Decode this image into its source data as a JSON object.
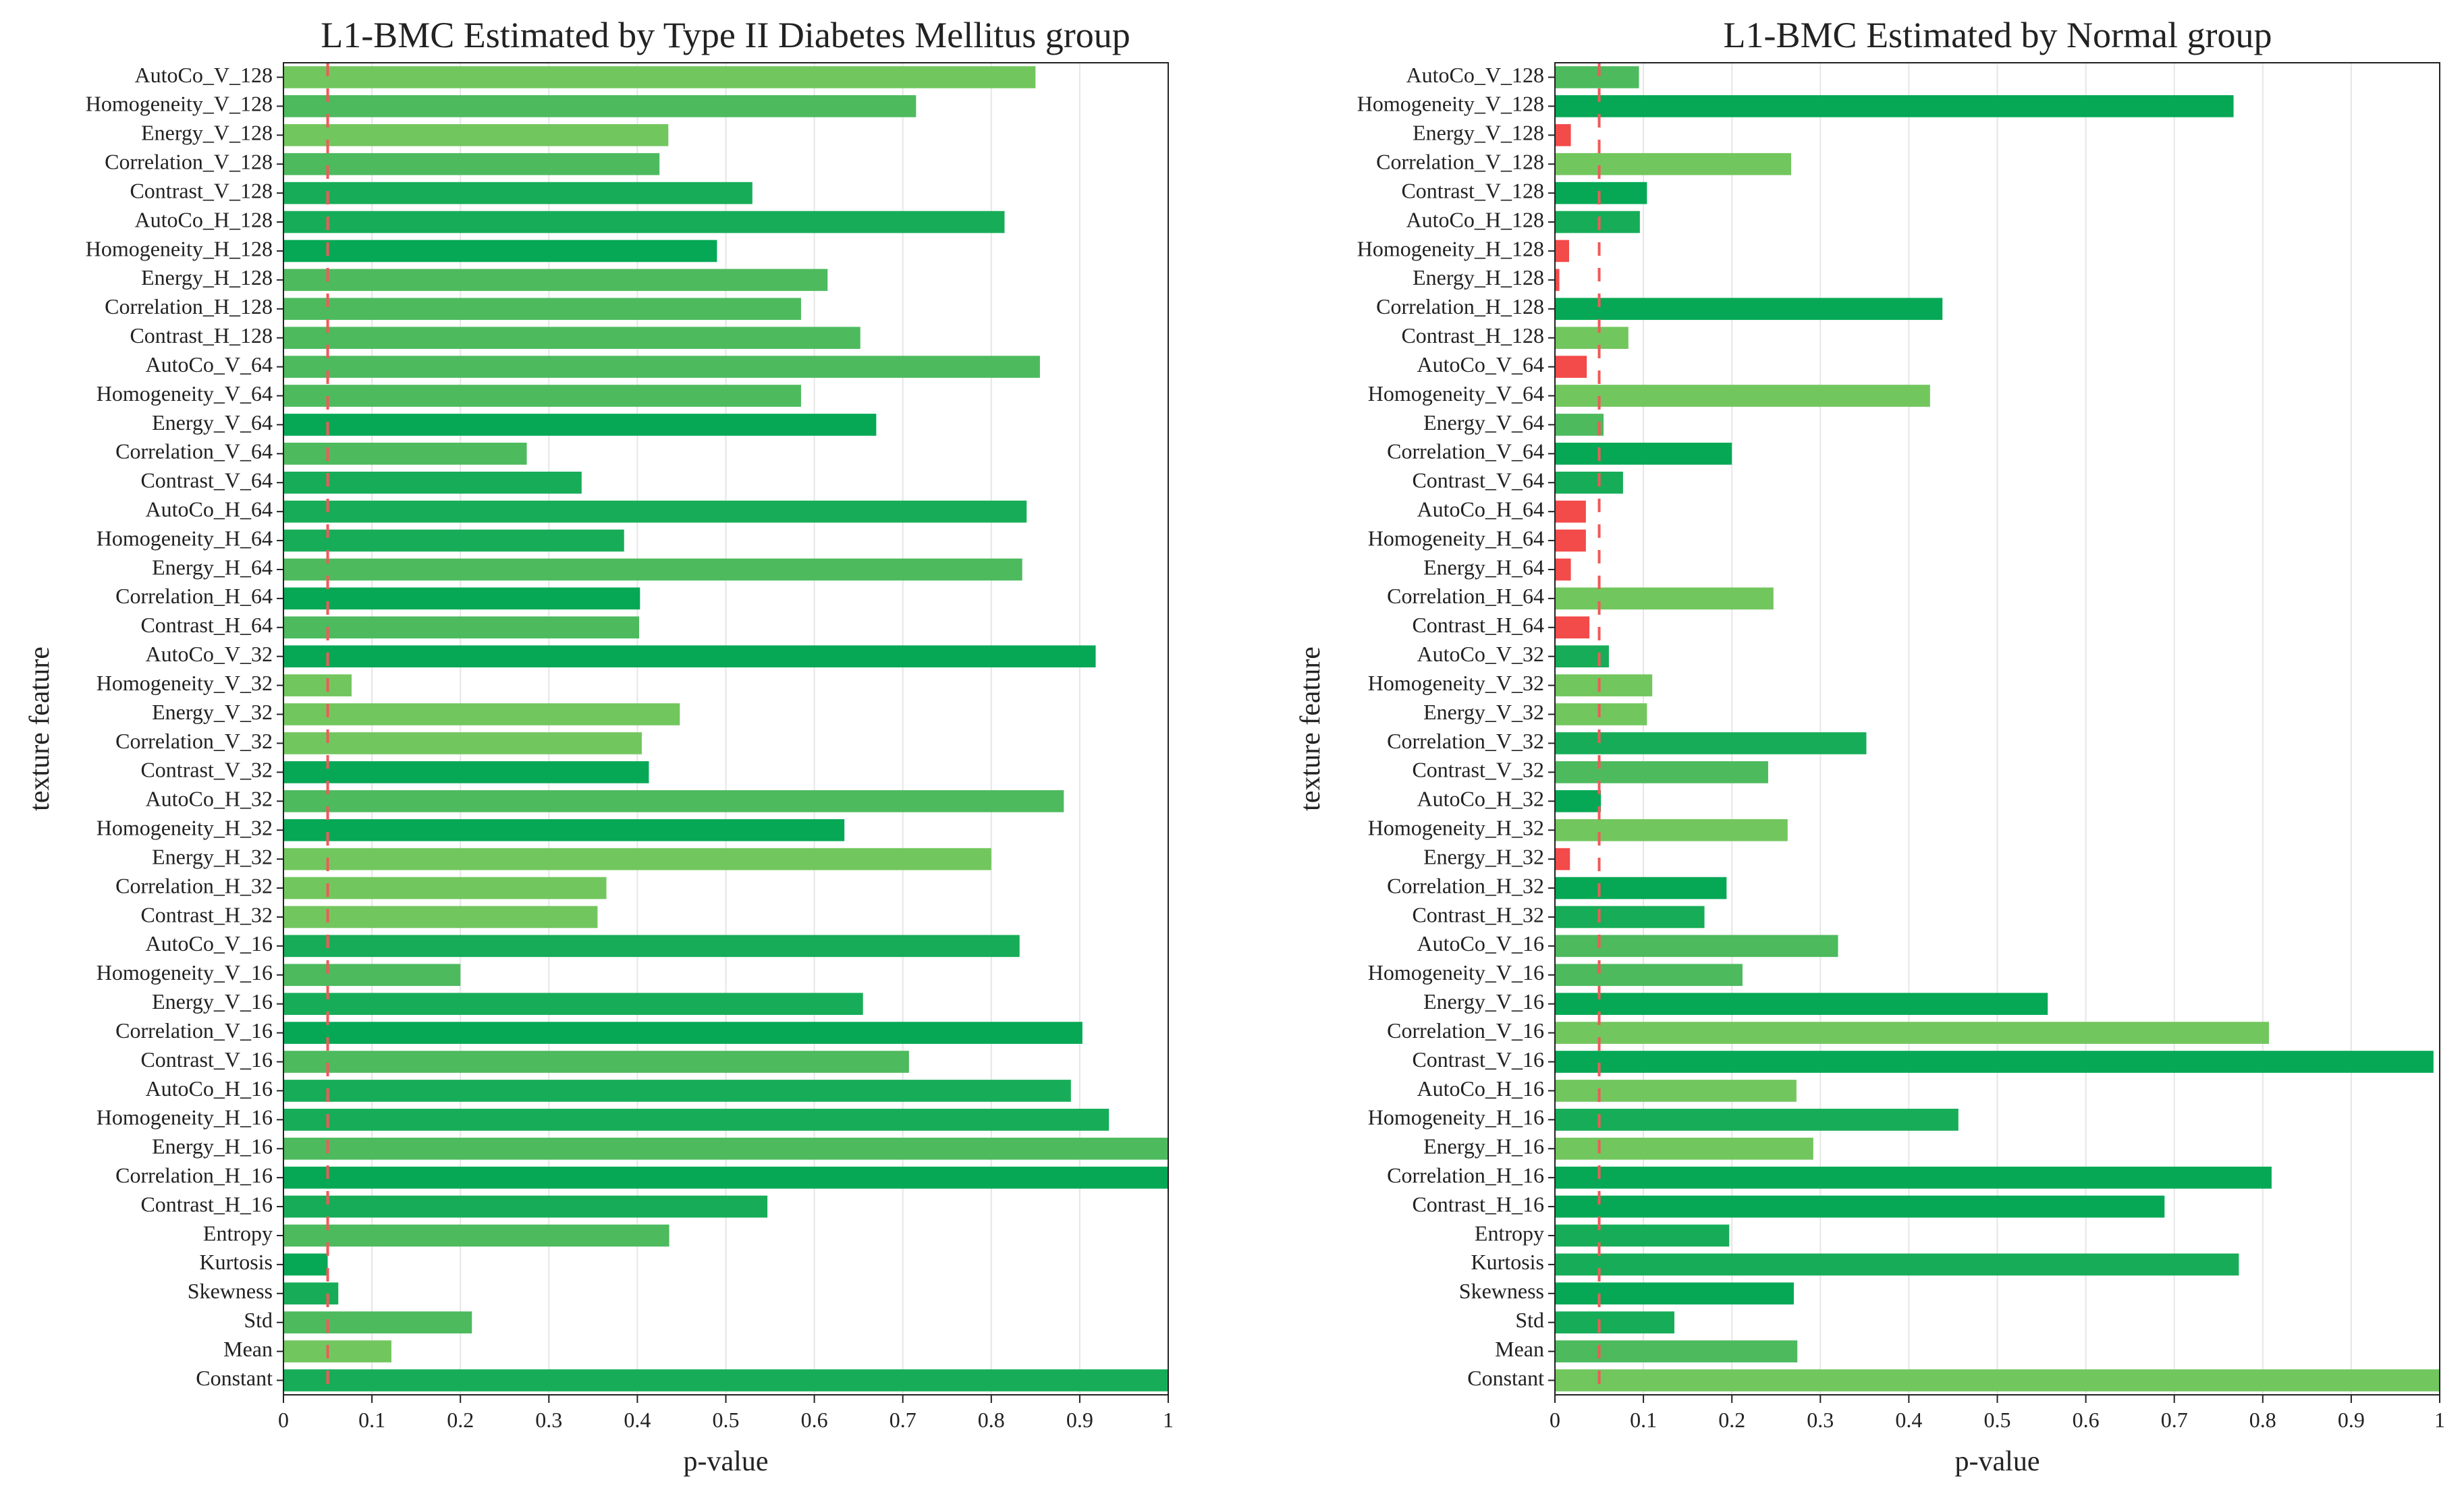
{
  "chart_data": [
    {
      "type": "bar",
      "orientation": "horizontal",
      "title": "L1-BMC Estimated by Type II Diabetes Mellitus group",
      "xlabel": "p-value",
      "ylabel": "texture feature",
      "xlim": [
        0,
        1
      ],
      "xticks": [
        "0",
        "0.1",
        "0.2",
        "0.3",
        "0.4",
        "0.5",
        "0.6",
        "0.7",
        "0.8",
        "0.9",
        "1"
      ],
      "threshold": 0.05,
      "grid": "vertical",
      "categories": [
        "AutoCo_V_128",
        "Homogeneity_V_128",
        "Energy_V_128",
        "Correlation_V_128",
        "Contrast_V_128",
        "AutoCo_H_128",
        "Homogeneity_H_128",
        "Energy_H_128",
        "Correlation_H_128",
        "Contrast_H_128",
        "AutoCo_V_64",
        "Homogeneity_V_64",
        "Energy_V_64",
        "Correlation_V_64",
        "Contrast_V_64",
        "AutoCo_H_64",
        "Homogeneity_H_64",
        "Energy_H_64",
        "Correlation_H_64",
        "Contrast_H_64",
        "AutoCo_V_32",
        "Homogeneity_V_32",
        "Energy_V_32",
        "Correlation_V_32",
        "Contrast_V_32",
        "AutoCo_H_32",
        "Homogeneity_H_32",
        "Energy_H_32",
        "Correlation_H_32",
        "Contrast_H_32",
        "AutoCo_V_16",
        "Homogeneity_V_16",
        "Energy_V_16",
        "Correlation_V_16",
        "Contrast_V_16",
        "AutoCo_H_16",
        "Homogeneity_H_16",
        "Energy_H_16",
        "Correlation_H_16",
        "Contrast_H_16",
        "Entropy",
        "Kurtosis",
        "Skewness",
        "Std",
        "Mean",
        "Constant"
      ],
      "values": [
        0.85,
        0.715,
        0.435,
        0.425,
        0.53,
        0.815,
        0.49,
        0.615,
        0.585,
        0.652,
        0.855,
        0.585,
        0.67,
        0.275,
        0.337,
        0.84,
        0.385,
        0.835,
        0.403,
        0.402,
        0.918,
        0.077,
        0.448,
        0.405,
        0.413,
        0.882,
        0.634,
        0.8,
        0.365,
        0.355,
        0.832,
        0.2,
        0.655,
        0.903,
        0.707,
        0.89,
        0.933,
        1.0,
        1.0,
        0.547,
        0.436,
        0.05,
        0.062,
        0.213,
        0.122,
        1.0
      ],
      "shades": [
        "#72c65e",
        "#4dba5e",
        "#72c65e",
        "#4dba5e",
        "#17ad58",
        "#17ad58",
        "#06a855",
        "#4dba5e",
        "#4dba5e",
        "#4dba5e",
        "#4dba5e",
        "#4dba5e",
        "#06a855",
        "#4dba5e",
        "#17ad58",
        "#17ad58",
        "#17ad58",
        "#4dba5e",
        "#06a855",
        "#4dba5e",
        "#06a855",
        "#72c65e",
        "#72c65e",
        "#72c65e",
        "#06a855",
        "#4dba5e",
        "#06a855",
        "#72c65e",
        "#72c65e",
        "#72c65e",
        "#17ad58",
        "#4dba5e",
        "#17ad58",
        "#06a855",
        "#4dba5e",
        "#17ad58",
        "#17ad58",
        "#4dba5e",
        "#06a855",
        "#17ad58",
        "#4dba5e",
        "#06a855",
        "#17ad58",
        "#4dba5e",
        "#72c65e",
        "#17ad58"
      ]
    },
    {
      "type": "bar",
      "orientation": "horizontal",
      "title": "L1-BMC Estimated by Normal group",
      "xlabel": "p-value",
      "ylabel": "texture feature",
      "xlim": [
        0,
        1
      ],
      "xticks": [
        "0",
        "0.1",
        "0.2",
        "0.3",
        "0.4",
        "0.5",
        "0.6",
        "0.7",
        "0.8",
        "0.9",
        "1"
      ],
      "threshold": 0.05,
      "grid": "vertical",
      "categories": [
        "AutoCo_V_128",
        "Homogeneity_V_128",
        "Energy_V_128",
        "Correlation_V_128",
        "Contrast_V_128",
        "AutoCo_H_128",
        "Homogeneity_H_128",
        "Energy_H_128",
        "Correlation_H_128",
        "Contrast_H_128",
        "AutoCo_V_64",
        "Homogeneity_V_64",
        "Energy_V_64",
        "Correlation_V_64",
        "Contrast_V_64",
        "AutoCo_H_64",
        "Homogeneity_H_64",
        "Energy_H_64",
        "Correlation_H_64",
        "Contrast_H_64",
        "AutoCo_V_32",
        "Homogeneity_V_32",
        "Energy_V_32",
        "Correlation_V_32",
        "Contrast_V_32",
        "AutoCo_H_32",
        "Homogeneity_H_32",
        "Energy_H_32",
        "Correlation_H_32",
        "Contrast_H_32",
        "AutoCo_V_16",
        "Homogeneity_V_16",
        "Energy_V_16",
        "Correlation_V_16",
        "Contrast_V_16",
        "AutoCo_H_16",
        "Homogeneity_H_16",
        "Energy_H_16",
        "Correlation_H_16",
        "Contrast_H_16",
        "Entropy",
        "Kurtosis",
        "Skewness",
        "Std",
        "Mean",
        "Constant"
      ],
      "values": [
        0.095,
        0.767,
        0.018,
        0.267,
        0.104,
        0.096,
        0.016,
        0.005,
        0.438,
        0.083,
        0.036,
        0.424,
        0.055,
        0.2,
        0.077,
        0.035,
        0.035,
        0.018,
        0.247,
        0.039,
        0.061,
        0.11,
        0.104,
        0.352,
        0.241,
        0.052,
        0.263,
        0.017,
        0.194,
        0.169,
        0.32,
        0.212,
        0.557,
        0.807,
        0.993,
        0.273,
        0.456,
        0.292,
        0.81,
        0.689,
        0.197,
        0.773,
        0.27,
        0.135,
        0.274,
        1.0
      ],
      "shades": [
        "#4dba5e",
        "#06a855",
        "#f34a4a",
        "#72c65e",
        "#06a855",
        "#17ad58",
        "#f34a4a",
        "#f34a4a",
        "#06a855",
        "#72c65e",
        "#f34a4a",
        "#72c65e",
        "#4dba5e",
        "#06a855",
        "#17ad58",
        "#f34a4a",
        "#f34a4a",
        "#f34a4a",
        "#72c65e",
        "#f34a4a",
        "#17ad58",
        "#72c65e",
        "#72c65e",
        "#17ad58",
        "#4dba5e",
        "#06a855",
        "#72c65e",
        "#f34a4a",
        "#06a855",
        "#17ad58",
        "#4dba5e",
        "#4dba5e",
        "#06a855",
        "#72c65e",
        "#06a855",
        "#72c65e",
        "#17ad58",
        "#72c65e",
        "#06a855",
        "#06a855",
        "#17ad58",
        "#17ad58",
        "#06a855",
        "#17ad58",
        "#4dba5e",
        "#72c65e"
      ]
    }
  ]
}
